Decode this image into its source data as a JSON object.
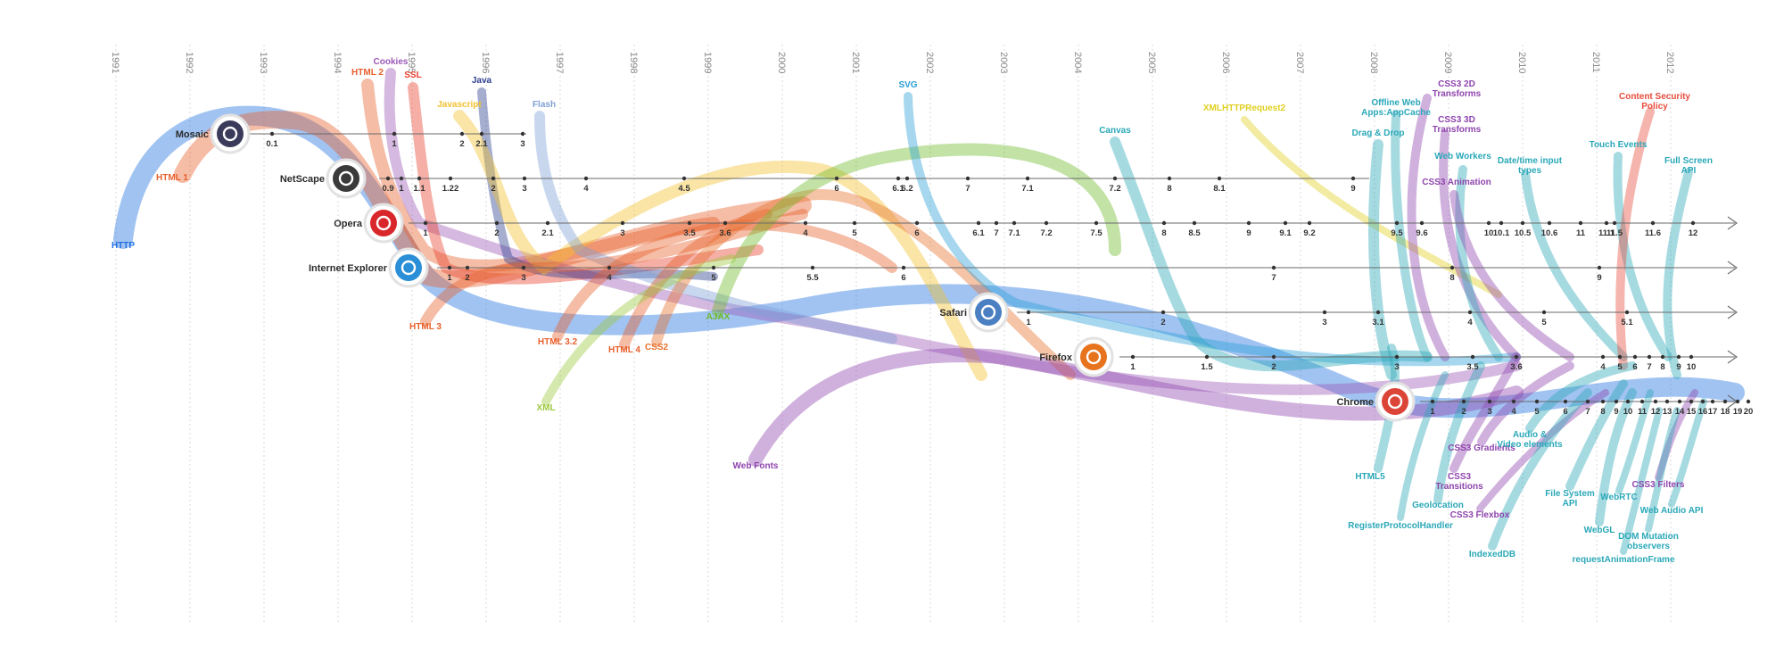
{
  "years": [
    "1991",
    "1992",
    "1993",
    "1994",
    "1995",
    "1996",
    "1997",
    "1998",
    "1999",
    "2000",
    "2001",
    "2002",
    "2003",
    "2004",
    "2005",
    "2006",
    "2007",
    "2008",
    "2009",
    "2010",
    "2011",
    "2012"
  ],
  "browsers": [
    {
      "name": "Mosaic",
      "icon": "mosaic-logo-icon",
      "color": "#3a3a5a",
      "versions": [
        "0.1",
        "1",
        "2",
        "2.1",
        "3"
      ]
    },
    {
      "name": "NetScape",
      "icon": "netscape-logo-icon",
      "color": "#3a3a3a",
      "versions": [
        "0.9",
        "1",
        "1.1",
        "1.22",
        "2",
        "3",
        "4",
        "4.5",
        "6",
        "6.1",
        "6.2",
        "7",
        "7.1",
        "7.2",
        "8",
        "8.1",
        "9"
      ]
    },
    {
      "name": "Opera",
      "icon": "opera-logo-icon",
      "color": "#d9262b",
      "versions": [
        "1",
        "2",
        "2.1",
        "3",
        "3.5",
        "3.6",
        "4",
        "5",
        "6",
        "6.1",
        "7",
        "7.1",
        "7.2",
        "7.5",
        "8",
        "8.5",
        "9",
        "9.1",
        "9.2",
        "9.5",
        "9.6",
        "10",
        "10.1",
        "10.5",
        "10.6",
        "11",
        "11.1",
        "11.5",
        "11.6",
        "12"
      ]
    },
    {
      "name": "Internet Explorer",
      "icon": "internet-explorer-logo-icon",
      "color": "#2a8fd6",
      "versions": [
        "1",
        "2",
        "3",
        "4",
        "5",
        "5.5",
        "6",
        "7",
        "8",
        "9"
      ]
    },
    {
      "name": "Safari",
      "icon": "safari-logo-icon",
      "color": "#4a7fc1",
      "versions": [
        "1",
        "2",
        "3",
        "3.1",
        "4",
        "5",
        "5.1"
      ]
    },
    {
      "name": "Firefox",
      "icon": "firefox-logo-icon",
      "color": "#e8731d",
      "versions": [
        "1",
        "1.5",
        "2",
        "3",
        "3.5",
        "3.6",
        "4",
        "5",
        "6",
        "7",
        "8",
        "9",
        "10",
        "11",
        "12",
        "13"
      ]
    },
    {
      "name": "Chrome",
      "icon": "chrome-logo-icon",
      "color": "#db4437",
      "versions": [
        "1",
        "2",
        "3",
        "4",
        "5",
        "6",
        "7",
        "8",
        "9",
        "10",
        "11",
        "12",
        "13",
        "14",
        "15",
        "16",
        "17",
        "18",
        "19",
        "20"
      ]
    }
  ],
  "features": [
    {
      "label": "HTTP",
      "color": "#1f6fe0"
    },
    {
      "label": "HTML 1",
      "color": "#e8602c"
    },
    {
      "label": "HTML 2",
      "color": "#e8602c"
    },
    {
      "label": "Cookies",
      "color": "#9b59b6"
    },
    {
      "label": "SSL",
      "color": "#e8402c"
    },
    {
      "label": "Java",
      "color": "#2c3e8e"
    },
    {
      "label": "Javascript",
      "color": "#f2c12e"
    },
    {
      "label": "Flash",
      "color": "#7f9fd6"
    },
    {
      "label": "HTML 3",
      "color": "#e8602c"
    },
    {
      "label": "HTML 3.2",
      "color": "#e8602c"
    },
    {
      "label": "HTML 4",
      "color": "#e8602c"
    },
    {
      "label": "CSS2",
      "color": "#e8702c"
    },
    {
      "label": "AJAX",
      "color": "#6fba2c"
    },
    {
      "label": "XML",
      "color": "#9bc83c"
    },
    {
      "label": "Web Fonts",
      "color": "#8e44ad"
    },
    {
      "label": "SVG",
      "color": "#2a9fd6"
    },
    {
      "label": "Canvas",
      "color": "#2aa8b8"
    },
    {
      "label": "XMLHTTPRequest2",
      "color": "#e0d020"
    },
    {
      "label": "Offline Web Apps:AppCache",
      "color": "#2aa8b8"
    },
    {
      "label": "Drag & Drop",
      "color": "#2aa8b8"
    },
    {
      "label": "CSS3 2D Transforms",
      "color": "#8e44ad"
    },
    {
      "label": "CSS3 3D Transforms",
      "color": "#8e44ad"
    },
    {
      "label": "Web Workers",
      "color": "#2aa8b8"
    },
    {
      "label": "CSS3 Animation",
      "color": "#8e44ad"
    },
    {
      "label": "Date/time input types",
      "color": "#2aa8b8"
    },
    {
      "label": "Touch Events",
      "color": "#2aa8b8"
    },
    {
      "label": "Content Security Policy",
      "color": "#e84c3c"
    },
    {
      "label": "Full Screen API",
      "color": "#2aa8b8"
    },
    {
      "label": "HTML5",
      "color": "#2aa8b8"
    },
    {
      "label": "RegisterProtocolHandler",
      "color": "#2aa8b8"
    },
    {
      "label": "Geolocation",
      "color": "#2aa8b8"
    },
    {
      "label": "CSS3 Transitions",
      "color": "#8e44ad"
    },
    {
      "label": "CSS3 Gradients",
      "color": "#8e44ad"
    },
    {
      "label": "CSS3 Flexbox",
      "color": "#8e44ad"
    },
    {
      "label": "IndexedDB",
      "color": "#2aa8b8"
    },
    {
      "label": "Audio & Video elements",
      "color": "#2aa8b8"
    },
    {
      "label": "File System API",
      "color": "#2aa8b8"
    },
    {
      "label": "WebRTC",
      "color": "#2aa8b8"
    },
    {
      "label": "WebGL",
      "color": "#2aa8b8"
    },
    {
      "label": "CSS3 Filters",
      "color": "#8e44ad"
    },
    {
      "label": "Web Audio API",
      "color": "#2aa8b8"
    },
    {
      "label": "DOM Mutation observers",
      "color": "#2aa8b8"
    },
    {
      "label": "requestAnimationFrame",
      "color": "#2aa8b8"
    }
  ]
}
